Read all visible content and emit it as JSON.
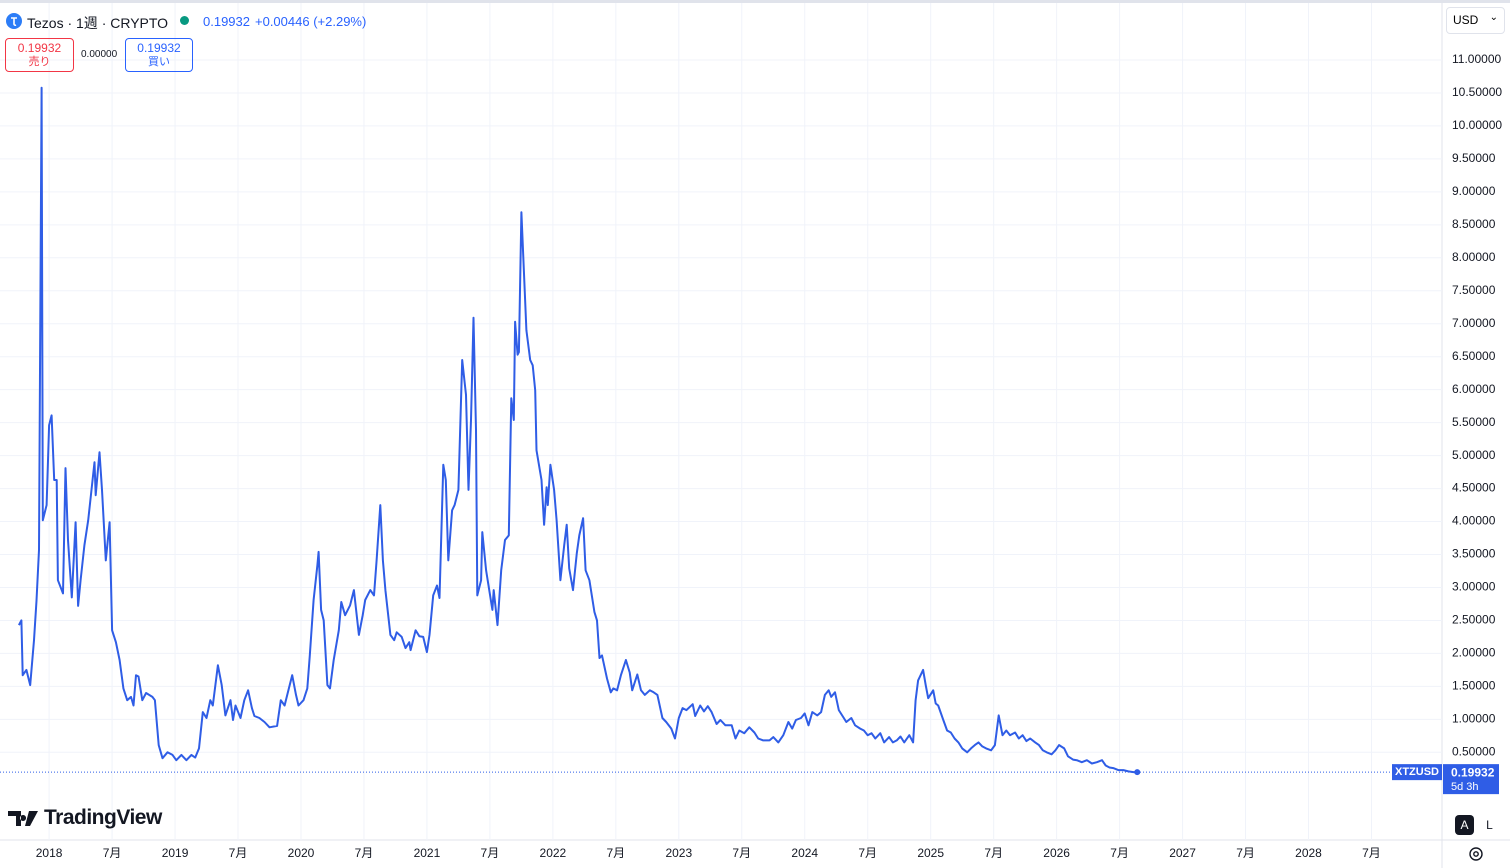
{
  "header": {
    "title": "Tezos · 1週 · CRYPTO",
    "price": "0.19932",
    "change": "+0.00446 (+2.29%)",
    "sell_price": "0.19932",
    "sell_label": "売り",
    "spread": "0.00000",
    "buy_price": "0.19932",
    "buy_label": "買い",
    "currency": "USD"
  },
  "branding": "TradingView",
  "controls": {
    "auto": "A",
    "log": "L"
  },
  "chart_data": {
    "type": "line",
    "x": [
      2017.76,
      2017.78,
      2017.79,
      2017.82,
      2017.85,
      2017.88,
      2017.9,
      2017.92,
      2017.94,
      2017.95,
      2017.98,
      2018.0,
      2018.02,
      2018.04,
      2018.06,
      2018.07,
      2018.11,
      2018.13,
      2018.15,
      2018.18,
      2018.21,
      2018.23,
      2018.25,
      2018.28,
      2018.31,
      2018.36,
      2018.37,
      2018.4,
      2018.42,
      2018.45,
      2018.48,
      2018.5,
      2018.53,
      2018.56,
      2018.59,
      2018.62,
      2018.65,
      2018.67,
      2018.69,
      2018.71,
      2018.74,
      2018.77,
      2018.82,
      2018.84,
      2018.87,
      2018.9,
      2018.94,
      2018.98,
      2019.01,
      2019.05,
      2019.09,
      2019.13,
      2019.16,
      2019.19,
      2019.22,
      2019.25,
      2019.28,
      2019.3,
      2019.34,
      2019.37,
      2019.4,
      2019.44,
      2019.46,
      2019.48,
      2019.52,
      2019.55,
      2019.58,
      2019.61,
      2019.63,
      2019.67,
      2019.71,
      2019.75,
      2019.81,
      2019.84,
      2019.87,
      2019.9,
      2019.93,
      2019.96,
      2019.98,
      2020.02,
      2020.05,
      2020.07,
      2020.1,
      2020.13,
      2020.14,
      2020.16,
      2020.18,
      2020.21,
      2020.23,
      2020.26,
      2020.3,
      2020.32,
      2020.35,
      2020.39,
      2020.42,
      2020.46,
      2020.49,
      2020.51,
      2020.55,
      2020.58,
      2020.6,
      2020.63,
      2020.65,
      2020.67,
      2020.71,
      2020.74,
      2020.76,
      2020.8,
      2020.83,
      2020.86,
      2020.87,
      2020.91,
      2020.94,
      2020.97,
      2021.0,
      2021.02,
      2021.05,
      2021.08,
      2021.1,
      2021.13,
      2021.15,
      2021.17,
      2021.2,
      2021.22,
      2021.25,
      2021.28,
      2021.31,
      2021.33,
      2021.35,
      2021.37,
      2021.39,
      2021.4,
      2021.43,
      2021.44,
      2021.47,
      2021.52,
      2021.53,
      2021.56,
      2021.59,
      2021.62,
      2021.65,
      2021.67,
      2021.69,
      2021.7,
      2021.72,
      2021.73,
      2021.75,
      2021.79,
      2021.82,
      2021.84,
      2021.86,
      2021.87,
      2021.91,
      2021.93,
      2021.95,
      2021.96,
      2021.98,
      2022.01,
      2022.03,
      2022.06,
      2022.09,
      2022.11,
      2022.13,
      2022.16,
      2022.19,
      2022.21,
      2022.24,
      2022.26,
      2022.29,
      2022.33,
      2022.35,
      2022.37,
      2022.39,
      2022.43,
      2022.46,
      2022.48,
      2022.51,
      2022.54,
      2022.58,
      2022.61,
      2022.63,
      2022.67,
      2022.7,
      2022.73,
      2022.77,
      2022.8,
      2022.83,
      2022.87,
      2022.9,
      2022.94,
      2022.97,
      2023.0,
      2023.03,
      2023.06,
      2023.11,
      2023.13,
      2023.17,
      2023.2,
      2023.23,
      2023.26,
      2023.3,
      2023.33,
      2023.37,
      2023.42,
      2023.45,
      2023.48,
      2023.52,
      2023.56,
      2023.6,
      2023.63,
      2023.67,
      2023.72,
      2023.75,
      2023.79,
      2023.83,
      2023.87,
      2023.9,
      2023.93,
      2023.97,
      2024.0,
      2024.03,
      2024.06,
      2024.1,
      2024.13,
      2024.16,
      2024.19,
      2024.21,
      2024.24,
      2024.27,
      2024.31,
      2024.33,
      2024.37,
      2024.4,
      2024.44,
      2024.47,
      2024.5,
      2024.53,
      2024.56,
      2024.6,
      2024.63,
      2024.67,
      2024.7,
      2024.73,
      2024.76,
      2024.79,
      2024.83,
      2024.86,
      2024.88,
      2024.9,
      2024.94,
      2024.96,
      2024.98,
      2025.02,
      2025.04,
      2025.06,
      2025.1,
      2025.13,
      2025.16,
      2025.19,
      2025.22,
      2025.25,
      2025.29,
      2025.32,
      2025.35,
      2025.38,
      2025.41,
      2025.44,
      2025.48,
      2025.51,
      2025.54,
      2025.57,
      2025.6,
      2025.63,
      2025.67,
      2025.7,
      2025.73,
      2025.76,
      2025.79,
      2025.83,
      2025.86,
      2025.89,
      2025.92,
      2025.96,
      2025.99,
      2026.02,
      2026.06,
      2026.09,
      2026.13,
      2026.16,
      2026.2,
      2026.24,
      2026.28,
      2026.32,
      2026.36,
      2026.39,
      2026.42,
      2026.45,
      2026.49,
      2026.53,
      2026.57,
      2026.61,
      2026.64
    ],
    "series": [
      {
        "name": "XTZUSD",
        "color": "#2f5de6",
        "values": [
          2.43,
          2.5,
          1.67,
          1.75,
          1.52,
          2.2,
          2.8,
          3.57,
          10.58,
          4.02,
          4.25,
          5.46,
          5.61,
          4.63,
          4.63,
          3.11,
          2.91,
          4.81,
          3.72,
          2.85,
          3.99,
          2.72,
          3.11,
          3.64,
          4.02,
          4.9,
          4.4,
          5.05,
          4.48,
          3.41,
          3.99,
          2.35,
          2.17,
          1.9,
          1.47,
          1.29,
          1.34,
          1.21,
          1.67,
          1.65,
          1.29,
          1.4,
          1.34,
          1.29,
          0.61,
          0.41,
          0.5,
          0.46,
          0.38,
          0.46,
          0.38,
          0.46,
          0.42,
          0.56,
          1.11,
          1.02,
          1.29,
          1.21,
          1.82,
          1.52,
          1.06,
          1.29,
          0.99,
          1.21,
          1.02,
          1.29,
          1.44,
          1.17,
          1.05,
          1.02,
          0.96,
          0.88,
          0.9,
          1.29,
          1.21,
          1.44,
          1.67,
          1.37,
          1.21,
          1.29,
          1.47,
          1.97,
          2.81,
          3.34,
          3.54,
          2.66,
          2.5,
          1.52,
          1.47,
          1.9,
          2.35,
          2.78,
          2.58,
          2.73,
          2.96,
          2.28,
          2.58,
          2.81,
          2.96,
          2.88,
          3.41,
          4.25,
          3.41,
          2.96,
          2.28,
          2.2,
          2.32,
          2.25,
          2.08,
          2.17,
          2.05,
          2.35,
          2.26,
          2.25,
          2.02,
          2.28,
          2.88,
          3.03,
          2.84,
          4.86,
          4.63,
          3.41,
          4.17,
          4.25,
          4.48,
          6.45,
          5.92,
          4.48,
          5.54,
          7.09,
          5.39,
          2.88,
          3.11,
          3.84,
          3.26,
          2.66,
          2.96,
          2.43,
          3.26,
          3.72,
          3.79,
          5.87,
          5.54,
          7.03,
          6.53,
          6.57,
          8.69,
          6.9,
          6.45,
          6.37,
          5.99,
          5.08,
          4.63,
          3.95,
          4.52,
          4.25,
          4.86,
          4.48,
          4.02,
          3.11,
          3.64,
          3.95,
          3.29,
          2.96,
          3.52,
          3.79,
          4.05,
          3.26,
          3.11,
          2.63,
          2.5,
          1.93,
          1.97,
          1.62,
          1.41,
          1.47,
          1.44,
          1.67,
          1.9,
          1.71,
          1.44,
          1.68,
          1.44,
          1.37,
          1.44,
          1.41,
          1.37,
          1.02,
          0.96,
          0.86,
          0.71,
          1.02,
          1.17,
          1.14,
          1.23,
          1.05,
          1.21,
          1.12,
          1.2,
          1.11,
          0.93,
          0.99,
          0.91,
          0.91,
          0.71,
          0.83,
          0.79,
          0.88,
          0.8,
          0.71,
          0.68,
          0.68,
          0.73,
          0.65,
          0.76,
          0.96,
          0.86,
          0.99,
          1.02,
          1.09,
          0.91,
          1.11,
          1.06,
          1.11,
          1.37,
          1.44,
          1.34,
          1.41,
          1.14,
          1.02,
          0.96,
          1.02,
          0.91,
          0.86,
          0.83,
          0.76,
          0.79,
          0.71,
          0.79,
          0.65,
          0.73,
          0.65,
          0.68,
          0.74,
          0.65,
          0.76,
          0.65,
          1.29,
          1.59,
          1.75,
          1.52,
          1.32,
          1.44,
          1.24,
          1.21,
          0.99,
          0.83,
          0.8,
          0.71,
          0.65,
          0.56,
          0.5,
          0.56,
          0.61,
          0.65,
          0.59,
          0.56,
          0.53,
          0.61,
          1.06,
          0.76,
          0.83,
          0.76,
          0.8,
          0.71,
          0.76,
          0.67,
          0.71,
          0.65,
          0.61,
          0.53,
          0.5,
          0.47,
          0.53,
          0.61,
          0.56,
          0.44,
          0.39,
          0.38,
          0.35,
          0.38,
          0.33,
          0.35,
          0.38,
          0.3,
          0.27,
          0.26,
          0.23,
          0.23,
          0.21,
          0.2,
          0.19932
        ]
      }
    ],
    "xlim": [
      2017.61,
      2029.06
    ],
    "xticks": [
      2018,
      {
        "value": 2018.5,
        "label": "7月"
      },
      2019,
      {
        "value": 2019.5,
        "label": "7月"
      },
      2020,
      {
        "value": 2020.5,
        "label": "7月"
      },
      2021,
      {
        "value": 2021.5,
        "label": "7月"
      },
      2022,
      {
        "value": 2022.5,
        "label": "7月"
      },
      2023,
      {
        "value": 2023.5,
        "label": "7月"
      },
      2024,
      {
        "value": 2024.5,
        "label": "7月"
      },
      2025,
      {
        "value": 2025.5,
        "label": "7月"
      },
      2026,
      {
        "value": 2026.5,
        "label": "7月"
      },
      2027,
      {
        "value": 2027.5,
        "label": "7月"
      },
      2028,
      {
        "value": 2028.5,
        "label": "7月"
      }
    ],
    "ylim": [
      -0.83,
      11.91
    ],
    "yticks": [
      {
        "value": 0.5,
        "label": "0.50000"
      },
      {
        "value": 1,
        "label": "1.00000"
      },
      {
        "value": 1.5,
        "label": "1.50000"
      },
      {
        "value": 2,
        "label": "2.00000"
      },
      {
        "value": 2.5,
        "label": "2.50000"
      },
      {
        "value": 3,
        "label": "3.00000"
      },
      {
        "value": 3.5,
        "label": "3.50000"
      },
      {
        "value": 4,
        "label": "4.00000"
      },
      {
        "value": 4.5,
        "label": "4.50000"
      },
      {
        "value": 5,
        "label": "5.00000"
      },
      {
        "value": 5.5,
        "label": "5.50000"
      },
      {
        "value": 6,
        "label": "6.00000"
      },
      {
        "value": 6.5,
        "label": "6.50000"
      },
      {
        "value": 7,
        "label": "7.00000"
      },
      {
        "value": 7.5,
        "label": "7.50000"
      },
      {
        "value": 8,
        "label": "8.00000"
      },
      {
        "value": 8.5,
        "label": "8.50000"
      },
      {
        "value": 9,
        "label": "9.00000"
      },
      {
        "value": 9.5,
        "label": "9.50000"
      },
      {
        "value": 10,
        "label": "10.00000"
      },
      {
        "value": 10.5,
        "label": "10.50000"
      },
      {
        "value": 11,
        "label": "11.00000"
      }
    ],
    "grid": true,
    "price_label": {
      "price": "0.19932",
      "countdown": "5d 3h"
    }
  }
}
